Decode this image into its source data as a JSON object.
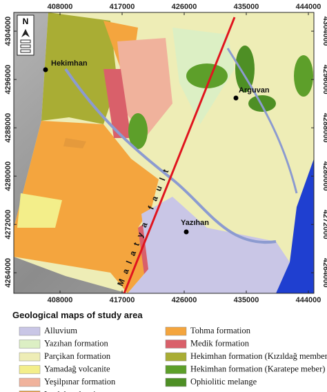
{
  "map": {
    "xticks": [
      408000,
      417000,
      426000,
      435000,
      444000
    ],
    "yticks": [
      4264000,
      4272000,
      4280000,
      4288000,
      4296000,
      4304000
    ],
    "xlim": [
      401300,
      444800
    ],
    "ylim": [
      4260600,
      4307100
    ],
    "north_label": "N",
    "places": [
      "Hekimhan",
      "Arguvan",
      "Yazıhan"
    ],
    "fault_label": "Malatya fault"
  },
  "legend": {
    "title": "Geological maps of study area",
    "items": [
      {
        "label": "Alluvium",
        "color": "#c9c6e6"
      },
      {
        "label": "Yazıhan formation",
        "color": "#dcefc4"
      },
      {
        "label": "Parçikan formation",
        "color": "#eeedb6"
      },
      {
        "label": "Yamadağ volcanite",
        "color": "#f3ee8a"
      },
      {
        "label": "Yeşilpınar formation",
        "color": "#f0b29c"
      },
      {
        "label": "Leylek volcanite",
        "color": "#e59a3c"
      },
      {
        "label": "Tohma formation",
        "color": "#f4a53e"
      },
      {
        "label": "Medik formation",
        "color": "#d9606a"
      },
      {
        "label": "Hekimhan formation (Kızıldağ  member)",
        "color": "#a9ad34"
      },
      {
        "label": "Hekimhan formation (Karatepe meber)",
        "color": "#5d9f2a"
      },
      {
        "label": "Ophiolitic melange",
        "color": "#4e8f25"
      }
    ]
  }
}
